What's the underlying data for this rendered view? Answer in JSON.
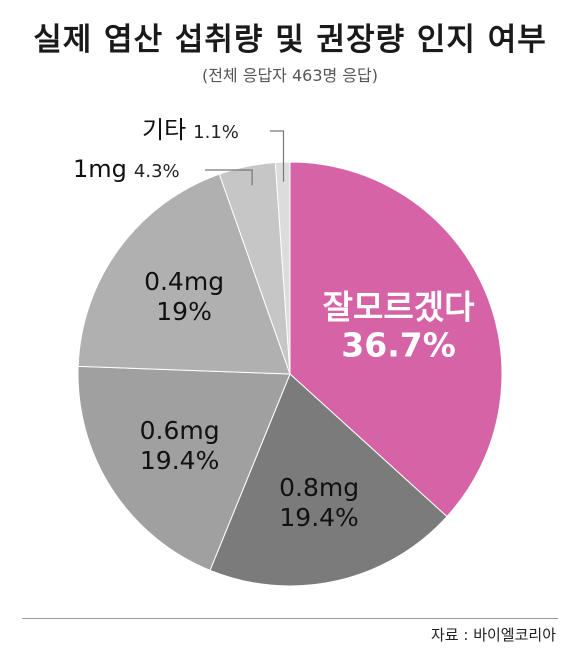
{
  "title": "실제 엽산 섭취량 및 권장량 인지 여부",
  "subtitle": "(전체 응답자 463명 응답)",
  "source": "자료 : 바이엘코리아",
  "chart_data": {
    "type": "pie",
    "title": "실제 엽산 섭취량 및 권장량 인지 여부",
    "subtitle": "(전체 응답자 463명 응답)",
    "start": "12 o'clock, clockwise",
    "slices": [
      {
        "label": "잘모르겠다",
        "value": 36.7,
        "value_label": "36.7%",
        "color": "#d663a6"
      },
      {
        "label": "0.8mg",
        "value": 19.4,
        "value_label": "19.4%",
        "color": "#7b7b7b"
      },
      {
        "label": "0.6mg",
        "value": 19.4,
        "value_label": "19.4%",
        "color": "#a0a0a0"
      },
      {
        "label": "0.4mg",
        "value": 19,
        "value_label": "19%",
        "color": "#b0b0b0"
      },
      {
        "label": "1mg",
        "value": 4.3,
        "value_label": "4.3%",
        "color": "#c6c6c6"
      },
      {
        "label": "기타",
        "value": 1.1,
        "value_label": "1.1%",
        "color": "#dcdcdc"
      }
    ]
  }
}
